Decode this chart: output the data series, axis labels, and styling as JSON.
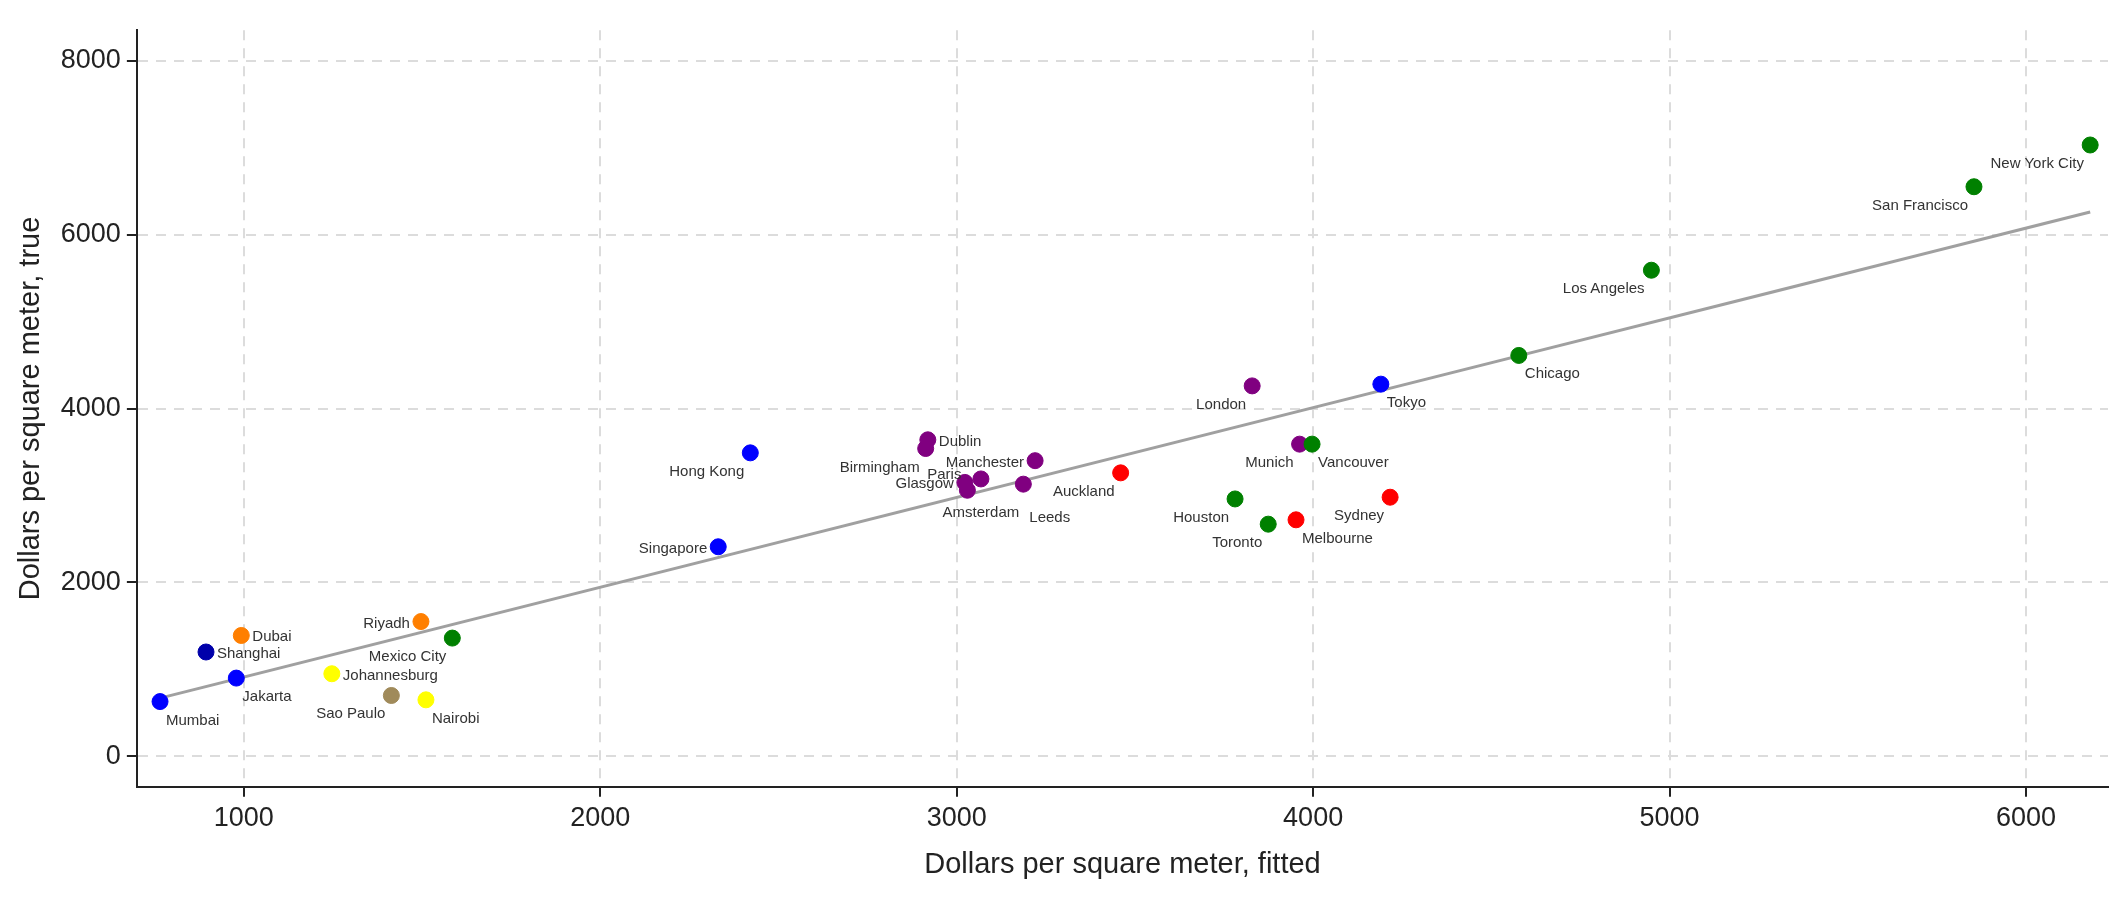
{
  "chart_data": {
    "type": "scatter",
    "xlabel": "Dollars per square meter, fitted",
    "ylabel": "Dollars per square meter, true",
    "xlim": [
      700,
      6230
    ],
    "ylim": [
      -350,
      8350
    ],
    "xticks": [
      1000,
      2000,
      3000,
      4000,
      5000,
      6000
    ],
    "yticks": [
      0,
      2000,
      4000,
      6000,
      8000
    ],
    "grid": true,
    "series": [
      {
        "type": "scatter",
        "marker": "circle",
        "x": [
          6180,
          5854,
          4949,
          4577,
          4190,
          3829,
          3962,
          3997,
          3460,
          3781,
          3874,
          3952,
          4216,
          2421,
          2331,
          2919,
          2913,
          3220,
          3068,
          3023,
          3030,
          3187,
          765,
          894,
          993,
          979,
          1247,
          1414,
          1511,
          1497,
          1585
        ],
        "values": [
          7030,
          6550,
          5590,
          4610,
          4280,
          4260,
          3590,
          3590,
          3260,
          2960,
          2670,
          2720,
          2980,
          3490,
          2410,
          3640,
          3540,
          3400,
          3190,
          3150,
          3060,
          3130,
          630,
          1200,
          1390,
          900,
          950,
          700,
          650,
          1550,
          1360
        ],
        "colors": [
          "#008000",
          "#008000",
          "#008000",
          "#008000",
          "#0000ff",
          "#800080",
          "#800080",
          "#008000",
          "#ff0000",
          "#008000",
          "#008000",
          "#ff0000",
          "#ff0000",
          "#0000ff",
          "#0000ff",
          "#800080",
          "#800080",
          "#800080",
          "#800080",
          "#800080",
          "#800080",
          "#800080",
          "#0000ff",
          "#0000aa",
          "#ff7f00",
          "#0000ff",
          "#ffff00",
          "#a08a5a",
          "#ffff00",
          "#ff7f00",
          "#008000"
        ],
        "value_labels": [
          "New York City",
          "San Francisco",
          "Los Angeles",
          "Chicago",
          "Tokyo",
          "London",
          "Munich",
          "Vancouver",
          "Auckland",
          "Houston",
          "Toronto",
          "Melbourne",
          "Sydney",
          "Hong Kong",
          "Singapore",
          "Dublin",
          "Birmingham",
          "Manchester",
          "Amsterdam",
          "Glasgow",
          "Paris",
          "Leeds",
          "Mumbai",
          "Shanghai",
          "Dubai",
          "Jakarta",
          "Johannesburg",
          "Sao Paulo",
          "Nairobi",
          "Riyadh",
          "Mexico City"
        ]
      },
      {
        "type": "line",
        "x": [
          765,
          6180
        ],
        "values": [
          670,
          6260
        ],
        "color": "#a0a0a0"
      }
    ]
  }
}
